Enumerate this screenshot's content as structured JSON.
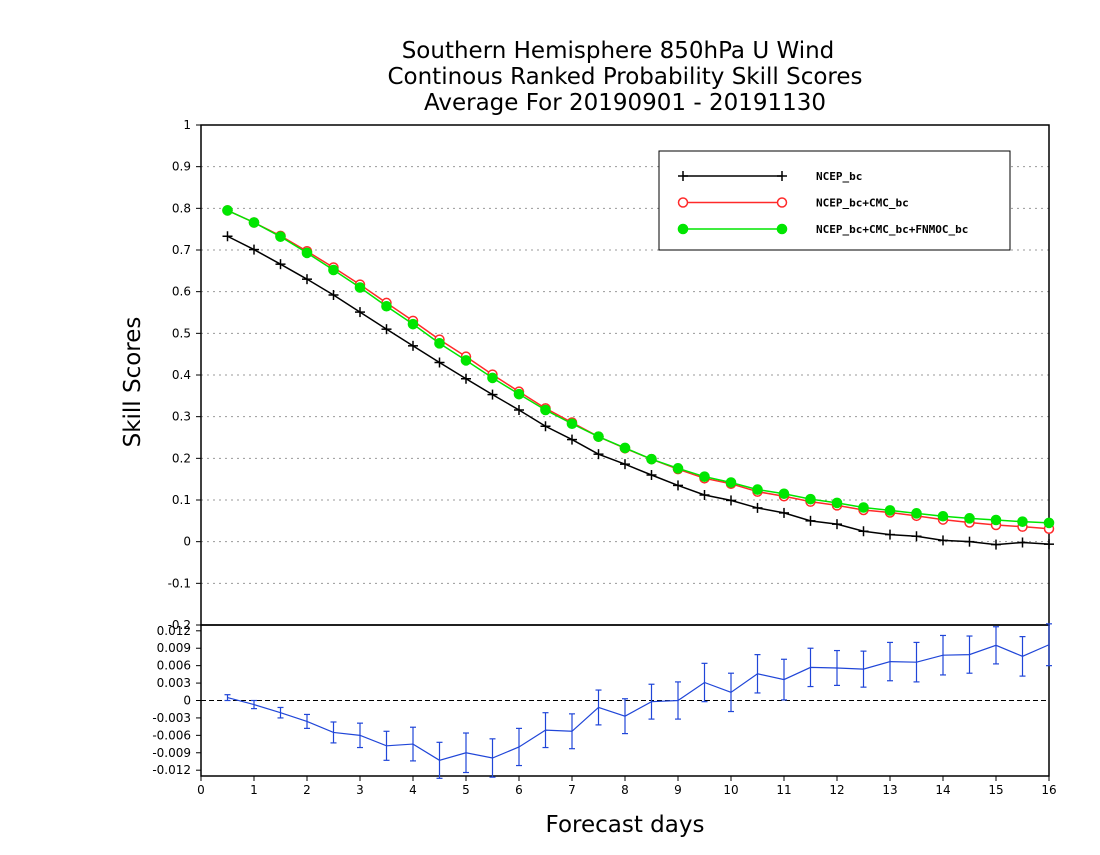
{
  "chart_data": [
    {
      "type": "line",
      "title": [
        "Southern Hemisphere 850hPa U Wind",
        "Continous Ranked Probability Skill Scores",
        "Average For 20190901 - 20191130"
      ],
      "xlabel": "Forecast days",
      "ylabel": "Skill Scores",
      "xlim": [
        0,
        16
      ],
      "ylim": [
        -0.2,
        1
      ],
      "x_ticks": [
        "0",
        "1",
        "2",
        "3",
        "4",
        "5",
        "6",
        "7",
        "8",
        "9",
        "10",
        "11",
        "12",
        "13",
        "14",
        "15",
        "16"
      ],
      "y_ticks": [
        "-0.2",
        "-0.1",
        "0",
        "0.1",
        "0.2",
        "0.3",
        "0.4",
        "0.5",
        "0.6",
        "0.7",
        "0.8",
        "0.9",
        "1"
      ],
      "grid": "horizontal dotted",
      "legend_position": "top-right",
      "x": [
        0.5,
        1,
        1.5,
        2,
        2.5,
        3,
        3.5,
        4,
        4.5,
        5,
        5.5,
        6,
        6.5,
        7,
        7.5,
        8,
        8.5,
        9,
        9.5,
        10,
        10.5,
        11,
        11.5,
        12,
        12.5,
        13,
        13.5,
        14,
        14.5,
        15,
        15.5,
        16
      ],
      "series": [
        {
          "name": "NCEP_bc",
          "color": "#000000",
          "marker": "plus",
          "values": [
            0.733,
            0.701,
            0.666,
            0.63,
            0.592,
            0.551,
            0.51,
            0.47,
            0.43,
            0.391,
            0.353,
            0.316,
            0.277,
            0.245,
            0.21,
            0.186,
            0.16,
            0.135,
            0.112,
            0.099,
            0.081,
            0.069,
            0.05,
            0.042,
            0.025,
            0.017,
            0.013,
            0.003,
            0.0,
            -0.007,
            -0.002,
            -0.006
          ]
        },
        {
          "name": "NCEP_bc+CMC_bc",
          "color": "#ff2a2a",
          "marker": "open-circle",
          "values": [
            0.795,
            0.766,
            0.734,
            0.697,
            0.658,
            0.617,
            0.573,
            0.53,
            0.485,
            0.444,
            0.401,
            0.36,
            0.32,
            0.286,
            0.252,
            0.224,
            0.198,
            0.174,
            0.152,
            0.139,
            0.12,
            0.109,
            0.096,
            0.087,
            0.076,
            0.07,
            0.062,
            0.053,
            0.046,
            0.04,
            0.036,
            0.031
          ]
        },
        {
          "name": "NCEP_bc+CMC_bc+FNMOC_bc",
          "color": "#00e600",
          "marker": "filled-circle",
          "values": [
            0.795,
            0.766,
            0.732,
            0.693,
            0.652,
            0.61,
            0.565,
            0.522,
            0.476,
            0.435,
            0.393,
            0.354,
            0.316,
            0.283,
            0.252,
            0.225,
            0.198,
            0.176,
            0.156,
            0.142,
            0.125,
            0.115,
            0.102,
            0.093,
            0.082,
            0.075,
            0.068,
            0.061,
            0.056,
            0.052,
            0.048,
            0.045
          ]
        }
      ]
    },
    {
      "type": "line",
      "subtype": "difference-with-error-bars",
      "xlim": [
        0,
        16
      ],
      "ylim": [
        -0.013,
        0.013
      ],
      "y_ticks": [
        "-0.012",
        "-0.009",
        "-0.006",
        "-0.003",
        "0",
        "0.003",
        "0.006",
        "0.009",
        "0.012"
      ],
      "x": [
        0.5,
        1,
        1.5,
        2,
        2.5,
        3,
        3.5,
        4,
        4.5,
        5,
        5.5,
        6,
        6.5,
        7,
        7.5,
        8,
        8.5,
        9,
        9.5,
        10,
        10.5,
        11,
        11.5,
        12,
        12.5,
        13,
        13.5,
        14,
        14.5,
        15,
        15.5,
        16
      ],
      "series": [
        {
          "color": "#2046d8",
          "marker": "error-bar",
          "values": [
            0.0005,
            -0.0007,
            -0.0021,
            -0.0036,
            -0.0055,
            -0.006,
            -0.0078,
            -0.0075,
            -0.0103,
            -0.009,
            -0.0099,
            -0.008,
            -0.0051,
            -0.0053,
            -0.0012,
            -0.0027,
            -0.0002,
            0.0,
            0.0031,
            0.0014,
            0.0046,
            0.0036,
            0.0057,
            0.0056,
            0.0054,
            0.0067,
            0.0066,
            0.0078,
            0.0079,
            0.0095,
            0.0076,
            0.0096
          ],
          "error": [
            0.0005,
            0.0007,
            0.0009,
            0.0012,
            0.0018,
            0.0021,
            0.0025,
            0.0029,
            0.0031,
            0.0034,
            0.0033,
            0.0032,
            0.003,
            0.003,
            0.003,
            0.003,
            0.003,
            0.0032,
            0.0033,
            0.0033,
            0.0033,
            0.0035,
            0.0033,
            0.003,
            0.0031,
            0.0033,
            0.0034,
            0.0034,
            0.0032,
            0.0032,
            0.0034,
            0.0036
          ]
        }
      ]
    }
  ]
}
